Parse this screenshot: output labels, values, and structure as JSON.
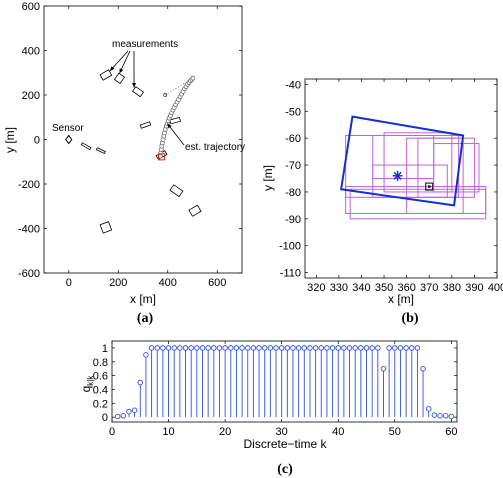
{
  "chart_data": [
    {
      "panel": "(a)",
      "type": "scatter",
      "xlabel": "x [m]",
      "ylabel": "y [m]",
      "xlim": [
        -100,
        700
      ],
      "ylim": [
        -600,
        600
      ],
      "xticks": [
        0,
        200,
        400,
        600
      ],
      "yticks": [
        -600,
        -400,
        -200,
        0,
        200,
        400,
        600
      ],
      "annotations": {
        "measurements": "measurements",
        "sensor": "Sensor",
        "trajectory": "est. trajectory"
      },
      "sensor_pos": [
        0,
        0
      ],
      "measurement_boxes": [
        {
          "x": 150,
          "y": 290,
          "w": 40,
          "h": 28,
          "rot": -30
        },
        {
          "x": 205,
          "y": 275,
          "w": 28,
          "h": 35,
          "rot": 35
        },
        {
          "x": 280,
          "y": 215,
          "w": 38,
          "h": 25,
          "rot": 35
        },
        {
          "x": 70,
          "y": -30,
          "w": 40,
          "h": 10,
          "rot": 30
        },
        {
          "x": 130,
          "y": -50,
          "w": 36,
          "h": 10,
          "rot": 25
        },
        {
          "x": 310,
          "y": 65,
          "w": 40,
          "h": 15,
          "rot": -20
        },
        {
          "x": 430,
          "y": 85,
          "w": 40,
          "h": 18,
          "rot": -15
        },
        {
          "x": 375,
          "y": -70,
          "w": 40,
          "h": 20,
          "rot": -30
        },
        {
          "x": 435,
          "y": -230,
          "w": 45,
          "h": 30,
          "rot": 35
        },
        {
          "x": 510,
          "y": -320,
          "w": 40,
          "h": 32,
          "rot": -30
        },
        {
          "x": 150,
          "y": -395,
          "w": 36,
          "h": 40,
          "rot": -20
        }
      ],
      "trajectory_x": [
        370,
        372,
        374,
        376,
        378,
        381,
        384,
        387,
        390,
        394,
        398,
        402,
        406,
        411,
        416,
        421,
        426,
        432,
        438,
        444,
        450,
        456,
        462,
        468,
        474,
        480,
        486,
        492,
        497,
        502
      ],
      "trajectory_y": [
        -75,
        -60,
        -45,
        -30,
        -15,
        0,
        15,
        30,
        45,
        60,
        72,
        84,
        96,
        108,
        120,
        132,
        144,
        156,
        168,
        180,
        192,
        204,
        216,
        228,
        238,
        248,
        256,
        264,
        270,
        276
      ],
      "dotted_line": [
        [
          390,
          200
        ],
        [
          500,
          275
        ]
      ],
      "dotted_start": [
        390,
        200
      ],
      "true_pos": [
        375,
        -78
      ]
    },
    {
      "panel": "(b)",
      "type": "scatter",
      "xlabel": "x [m]",
      "ylabel": "y [m]",
      "xlim": [
        315,
        400
      ],
      "ylim": [
        -112,
        -38
      ],
      "xticks": [
        320,
        330,
        340,
        350,
        360,
        370,
        380,
        390,
        400
      ],
      "yticks": [
        -110,
        -100,
        -90,
        -80,
        -70,
        -60,
        -50,
        -40
      ],
      "estimate_rect": [
        [
          336,
          -52
        ],
        [
          385,
          -59
        ],
        [
          381,
          -85
        ],
        [
          331,
          -79
        ]
      ],
      "candidate_rects": [
        [
          333,
          -59,
          383,
          -82
        ],
        [
          345,
          -59,
          372,
          -75
        ],
        [
          360,
          -60,
          385,
          -88
        ],
        [
          333,
          -78,
          395,
          -88
        ],
        [
          335,
          -79,
          395,
          -90
        ],
        [
          350,
          -58,
          380,
          -80
        ],
        [
          365,
          -60,
          390,
          -82
        ],
        [
          345,
          -70,
          378,
          -82
        ],
        [
          372,
          -62,
          392,
          -80
        ]
      ],
      "star_pos": [
        356,
        -74
      ],
      "square_pos": [
        370,
        -78
      ]
    },
    {
      "panel": "(c)",
      "type": "stem",
      "xlabel": "Discrete−time k",
      "ylabel": "q",
      "ylabel_sub": "k|k",
      "xlim": [
        0,
        61
      ],
      "ylim": [
        0,
        1.05
      ],
      "xticks": [
        0,
        10,
        20,
        30,
        40,
        50,
        60
      ],
      "yticks": [
        0,
        0.2,
        0.4,
        0.6,
        0.8,
        1
      ],
      "x": [
        1,
        2,
        3,
        4,
        5,
        6,
        7,
        8,
        9,
        10,
        11,
        12,
        13,
        14,
        15,
        16,
        17,
        18,
        19,
        20,
        21,
        22,
        23,
        24,
        25,
        26,
        27,
        28,
        29,
        30,
        31,
        32,
        33,
        34,
        35,
        36,
        37,
        38,
        39,
        40,
        41,
        42,
        43,
        44,
        45,
        46,
        47,
        48,
        49,
        50,
        51,
        52,
        53,
        54,
        55,
        56,
        57,
        58,
        59,
        60
      ],
      "values": [
        0.01,
        0.02,
        0.08,
        0.1,
        0.5,
        0.9,
        1,
        1,
        1,
        1,
        1,
        1,
        1,
        1,
        1,
        1,
        1,
        1,
        1,
        1,
        1,
        1,
        1,
        1,
        1,
        1,
        1,
        1,
        1,
        1,
        1,
        1,
        1,
        1,
        1,
        1,
        1,
        1,
        1,
        1,
        1,
        1,
        1,
        1,
        1,
        1,
        1,
        0.7,
        1,
        1,
        1,
        1,
        1,
        1,
        0.7,
        0.12,
        0.03,
        0.02,
        0.02,
        0.01
      ]
    }
  ],
  "captions": [
    "(a)",
    "(b)",
    "(c)"
  ],
  "colors": {
    "axis": "#000000",
    "trajectory": "#555555",
    "estimate": "#1030d0",
    "candidates": "#c060e0",
    "stem": "#3050e0",
    "true_marker": "#e02020"
  }
}
